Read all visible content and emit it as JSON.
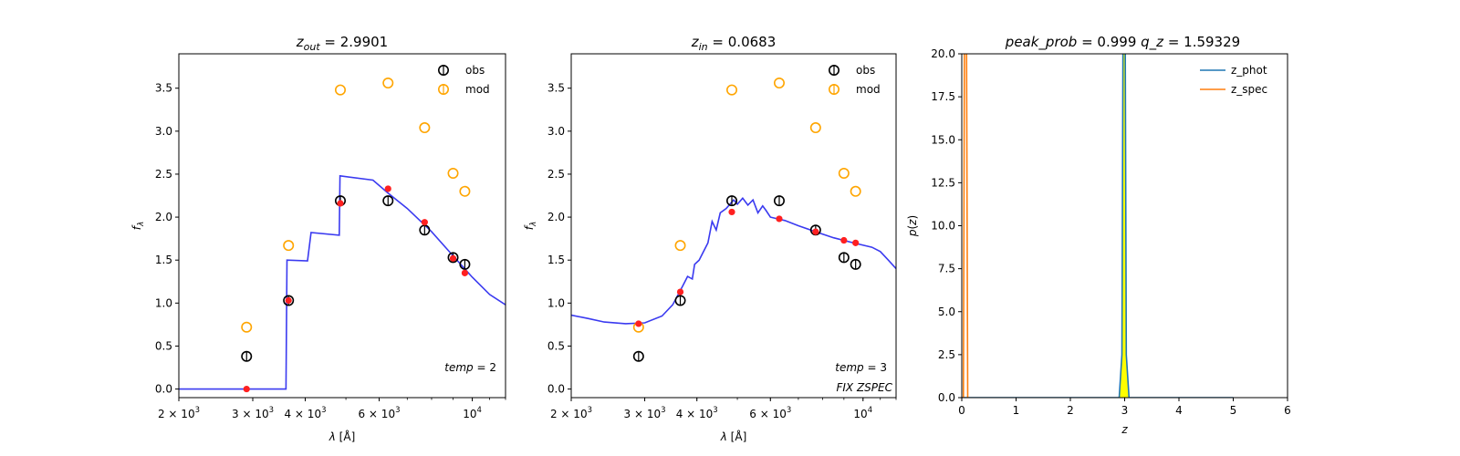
{
  "chart_data": [
    {
      "type": "scatter",
      "title_main": "z",
      "title_sub": "out",
      "title_rest": " = 2.9901",
      "xlabel": "λ [Å]",
      "ylabel": "f",
      "ylabel_sub": "λ",
      "xscale": "log",
      "xlim": [
        2000,
        12000
      ],
      "ylim": [
        -0.1,
        3.9
      ],
      "xticks": [
        {
          "value": 2000,
          "base": "2 × 10",
          "exp": "3"
        },
        {
          "value": 3000,
          "base": "3 × 10",
          "exp": "3"
        },
        {
          "value": 4000,
          "base": "4 × 10",
          "exp": "3"
        },
        {
          "value": 6000,
          "base": "6 × 10",
          "exp": "3"
        },
        {
          "value": 10000,
          "base": "10",
          "exp": "4"
        }
      ],
      "yticks": [
        "0.0",
        "0.5",
        "1.0",
        "1.5",
        "2.0",
        "2.5",
        "3.0",
        "3.5"
      ],
      "legend": [
        "obs",
        "mod"
      ],
      "annotations": [
        "temp = 2"
      ],
      "obs": [
        [
          2900,
          0.38
        ],
        [
          3650,
          1.03
        ],
        [
          4850,
          2.19
        ],
        [
          6300,
          2.19
        ],
        [
          7700,
          1.85
        ],
        [
          9000,
          1.53
        ],
        [
          9600,
          1.45
        ]
      ],
      "mod": [
        [
          2900,
          0.72
        ],
        [
          3650,
          1.67
        ],
        [
          4850,
          3.48
        ],
        [
          6300,
          3.56
        ],
        [
          7700,
          3.04
        ],
        [
          9000,
          2.51
        ],
        [
          9600,
          2.3
        ]
      ],
      "fit_points": [
        [
          2900,
          0.0
        ],
        [
          3650,
          1.03
        ],
        [
          4850,
          2.16
        ],
        [
          6300,
          2.33
        ],
        [
          7700,
          1.94
        ],
        [
          9000,
          1.52
        ],
        [
          9600,
          1.35
        ]
      ],
      "sed": [
        [
          2000,
          0.0
        ],
        [
          3600,
          0.0
        ],
        [
          3620,
          1.5
        ],
        [
          4050,
          1.49
        ],
        [
          4130,
          1.82
        ],
        [
          4820,
          1.79
        ],
        [
          4840,
          2.48
        ],
        [
          5800,
          2.43
        ],
        [
          6300,
          2.28
        ],
        [
          7000,
          2.1
        ],
        [
          8000,
          1.83
        ],
        [
          9000,
          1.55
        ],
        [
          10000,
          1.3
        ],
        [
          11000,
          1.1
        ],
        [
          12000,
          0.98
        ]
      ],
      "colors": {
        "obs": "#000000",
        "mod": "#ffa500",
        "fit": "#ff2020",
        "sed": "#3a3af0"
      }
    },
    {
      "type": "scatter",
      "title_main": "z",
      "title_sub": "in",
      "title_rest": " = 0.0683",
      "xlabel": "λ [Å]",
      "ylabel": "f",
      "ylabel_sub": "λ",
      "xscale": "log",
      "xlim": [
        2000,
        12000
      ],
      "ylim": [
        -0.1,
        3.9
      ],
      "xticks": [
        {
          "value": 2000,
          "base": "2 × 10",
          "exp": "3"
        },
        {
          "value": 3000,
          "base": "3 × 10",
          "exp": "3"
        },
        {
          "value": 4000,
          "base": "4 × 10",
          "exp": "3"
        },
        {
          "value": 6000,
          "base": "6 × 10",
          "exp": "3"
        },
        {
          "value": 10000,
          "base": "10",
          "exp": "4"
        }
      ],
      "yticks": [
        "0.0",
        "0.5",
        "1.0",
        "1.5",
        "2.0",
        "2.5",
        "3.0",
        "3.5"
      ],
      "legend": [
        "obs",
        "mod"
      ],
      "annotations": [
        "temp = 3",
        "FIX ZSPEC"
      ],
      "obs": [
        [
          2900,
          0.38
        ],
        [
          3650,
          1.03
        ],
        [
          4850,
          2.19
        ],
        [
          6300,
          2.19
        ],
        [
          7700,
          1.85
        ],
        [
          9000,
          1.53
        ],
        [
          9600,
          1.45
        ]
      ],
      "mod": [
        [
          2900,
          0.72
        ],
        [
          3650,
          1.67
        ],
        [
          4850,
          3.48
        ],
        [
          6300,
          3.56
        ],
        [
          7700,
          3.04
        ],
        [
          9000,
          2.51
        ],
        [
          9600,
          2.3
        ]
      ],
      "fit_points": [
        [
          2900,
          0.76
        ],
        [
          3650,
          1.13
        ],
        [
          4850,
          2.06
        ],
        [
          6300,
          1.98
        ],
        [
          7700,
          1.83
        ],
        [
          9000,
          1.73
        ],
        [
          9600,
          1.7
        ]
      ],
      "sed": [
        [
          2000,
          0.86
        ],
        [
          2200,
          0.82
        ],
        [
          2400,
          0.78
        ],
        [
          2700,
          0.76
        ],
        [
          3000,
          0.77
        ],
        [
          3300,
          0.85
        ],
        [
          3500,
          0.98
        ],
        [
          3700,
          1.2
        ],
        [
          3800,
          1.31
        ],
        [
          3900,
          1.28
        ],
        [
          3950,
          1.45
        ],
        [
          4050,
          1.5
        ],
        [
          4150,
          1.6
        ],
        [
          4250,
          1.7
        ],
        [
          4350,
          1.95
        ],
        [
          4450,
          1.85
        ],
        [
          4550,
          2.05
        ],
        [
          4700,
          2.1
        ],
        [
          4900,
          2.2
        ],
        [
          5000,
          2.15
        ],
        [
          5150,
          2.22
        ],
        [
          5300,
          2.14
        ],
        [
          5450,
          2.2
        ],
        [
          5600,
          2.05
        ],
        [
          5750,
          2.13
        ],
        [
          5850,
          2.08
        ],
        [
          6000,
          2.0
        ],
        [
          6500,
          1.96
        ],
        [
          7000,
          1.9
        ],
        [
          7700,
          1.83
        ],
        [
          8500,
          1.76
        ],
        [
          9500,
          1.7
        ],
        [
          10500,
          1.65
        ],
        [
          11000,
          1.6
        ],
        [
          11500,
          1.5
        ],
        [
          12000,
          1.4
        ]
      ],
      "colors": {
        "obs": "#000000",
        "mod": "#ffa500",
        "fit": "#ff2020",
        "sed": "#3a3af0"
      }
    },
    {
      "type": "line",
      "title_left": "peak_prob",
      "title_left_value": " = 0.999",
      "title_right": "q_z",
      "title_right_value": " = 1.59329",
      "xlabel": "z",
      "ylabel": "p(z)",
      "xlim": [
        0,
        6
      ],
      "ylim": [
        0,
        20
      ],
      "xticks": [
        "0",
        "1",
        "2",
        "3",
        "4",
        "5",
        "6"
      ],
      "yticks": [
        "0.0",
        "2.5",
        "5.0",
        "7.5",
        "10.0",
        "12.5",
        "15.0",
        "17.5",
        "20.0"
      ],
      "series": [
        {
          "name": "z_phot",
          "color": "#1f77b4",
          "x": [
            0,
            2.9,
            2.95,
            2.99,
            3.03,
            3.08,
            5.0
          ],
          "y": [
            0,
            0,
            2.5,
            40,
            2.5,
            0,
            0
          ]
        },
        {
          "name": "z_spec",
          "color": "#ff7f0e",
          "x": [
            0.03,
            0.068,
            0.068,
            0.11
          ],
          "y": [
            0,
            40,
            40,
            0
          ]
        }
      ],
      "fill": {
        "color": "#ffff00",
        "x": [
          2.9,
          2.95,
          2.99,
          3.03,
          3.08
        ],
        "y": [
          0,
          2.5,
          40,
          2.5,
          0
        ]
      }
    }
  ]
}
